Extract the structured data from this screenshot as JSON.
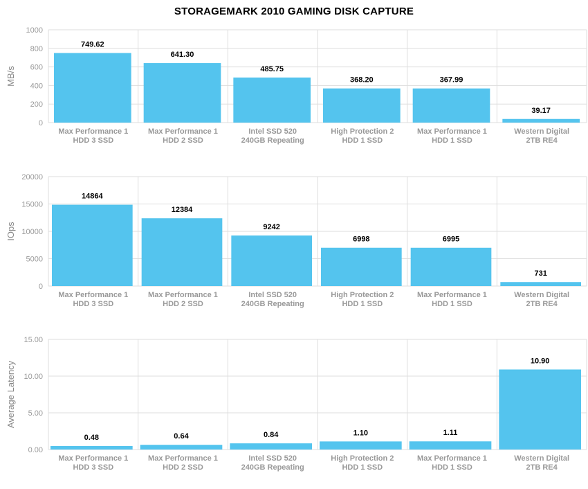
{
  "title": "STORAGEMARK 2010 GAMING DISK CAPTURE",
  "colors": {
    "bar": "#54c4ee",
    "grid": "#dddddd"
  },
  "chart_data": [
    {
      "type": "bar",
      "title": "STORAGEMARK 2010 GAMING DISK CAPTURE",
      "ylabel": "MB/s",
      "xlabel": "",
      "ylim": [
        0,
        1000
      ],
      "yticks": [
        "0",
        "200",
        "400",
        "600",
        "800",
        "1000"
      ],
      "ytick_values": [
        0,
        200,
        400,
        600,
        800,
        1000
      ],
      "categories": [
        [
          "Max Performance 1",
          "HDD 3 SSD"
        ],
        [
          "Max Performance 1",
          "HDD 2 SSD"
        ],
        [
          "Intel SSD 520",
          "240GB Repeating"
        ],
        [
          "High Protection 2",
          "HDD 1 SSD"
        ],
        [
          "Max Performance 1",
          "HDD 1 SSD"
        ],
        [
          "Western Digital",
          "2TB RE4"
        ]
      ],
      "values": [
        749.62,
        641.3,
        485.75,
        368.2,
        367.99,
        39.17
      ],
      "labels": [
        "749.62",
        "641.30",
        "485.75",
        "368.20",
        "367.99",
        "39.17"
      ],
      "grid": true
    },
    {
      "type": "bar",
      "ylabel": "IOps",
      "xlabel": "",
      "ylim": [
        0,
        20000
      ],
      "yticks": [
        "0",
        "5000",
        "10000",
        "15000",
        "20000"
      ],
      "ytick_values": [
        0,
        5000,
        10000,
        15000,
        20000
      ],
      "categories": [
        [
          "Max Performance 1",
          "HDD 3 SSD"
        ],
        [
          "Max Performance 1",
          "HDD 2 SSD"
        ],
        [
          "Intel SSD 520",
          "240GB Repeating"
        ],
        [
          "High Protection 2",
          "HDD 1 SSD"
        ],
        [
          "Max Performance 1",
          "HDD 1 SSD"
        ],
        [
          "Western Digital",
          "2TB RE4"
        ]
      ],
      "values": [
        14864,
        12384,
        9242,
        6998,
        6995,
        731
      ],
      "labels": [
        "14864",
        "12384",
        "9242",
        "6998",
        "6995",
        "731"
      ],
      "grid": true
    },
    {
      "type": "bar",
      "ylabel": "Average Latency",
      "xlabel": "",
      "ylim": [
        0,
        15
      ],
      "yticks": [
        "0.00",
        "5.00",
        "10.00",
        "15.00"
      ],
      "ytick_values": [
        0,
        5,
        10,
        15
      ],
      "categories": [
        [
          "Max Performance 1",
          "HDD 3 SSD"
        ],
        [
          "Max Performance 1",
          "HDD 2 SSD"
        ],
        [
          "Intel SSD 520",
          "240GB Repeating"
        ],
        [
          "High Protection 2",
          "HDD 1 SSD"
        ],
        [
          "Max Performance 1",
          "HDD 1 SSD"
        ],
        [
          "Western Digital",
          "2TB RE4"
        ]
      ],
      "values": [
        0.48,
        0.64,
        0.84,
        1.1,
        1.11,
        10.9
      ],
      "labels": [
        "0.48",
        "0.64",
        "0.84",
        "1.10",
        "1.11",
        "10.90"
      ],
      "grid": true
    }
  ]
}
